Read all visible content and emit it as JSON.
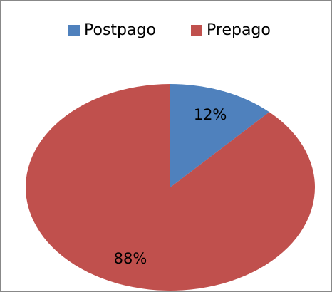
{
  "chart_data": {
    "type": "pie",
    "categories": [
      "Postpago",
      "Prepago"
    ],
    "values": [
      12,
      88
    ],
    "value_labels": [
      "12%",
      "88%"
    ],
    "colors": [
      "#4f81bd",
      "#c0504d"
    ],
    "legend": "top"
  }
}
